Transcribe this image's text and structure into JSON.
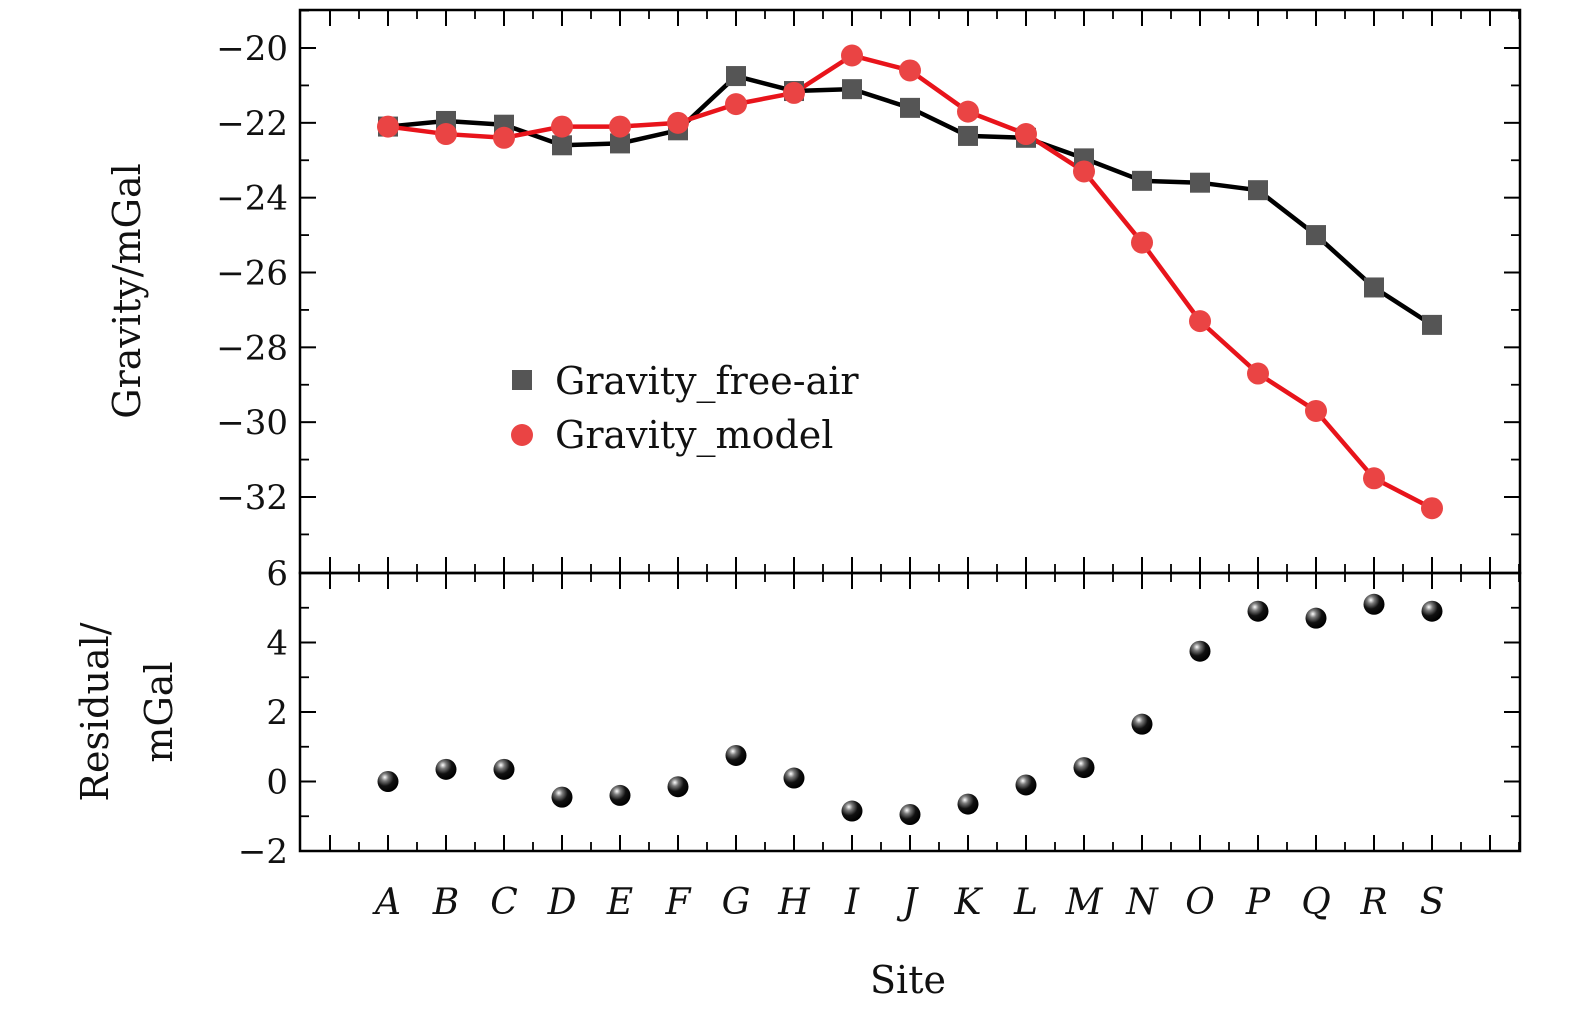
{
  "chart_data": {
    "type": "line",
    "categories": [
      "A",
      "B",
      "C",
      "D",
      "E",
      "F",
      "G",
      "H",
      "I",
      "J",
      "K",
      "L",
      "M",
      "N",
      "O",
      "P",
      "Q",
      "R",
      "S"
    ],
    "x_axis": {
      "label": "Site"
    },
    "top_panel": {
      "ylabel": "Gravity/mGal",
      "ylim": [
        -34,
        -19
      ],
      "yticks": [
        -20,
        -22,
        -24,
        -26,
        -28,
        -30,
        -32
      ],
      "ytick_labels": [
        "−20",
        "−22",
        "−24",
        "−26",
        "−28",
        "−30",
        "−32"
      ],
      "legend_position": "center",
      "series": [
        {
          "name": "Gravity_free-air",
          "marker": "square",
          "color": "#000000",
          "marker_color": "#555555",
          "values": [
            -22.1,
            -21.95,
            -22.05,
            -22.6,
            -22.55,
            -22.2,
            -20.75,
            -21.15,
            -21.1,
            -21.6,
            -22.35,
            -22.4,
            -22.95,
            -23.55,
            -23.6,
            -23.8,
            -25.0,
            -26.4,
            -27.4
          ]
        },
        {
          "name": "Gravity_model",
          "marker": "circle",
          "color": "#e8141b",
          "marker_color": "#ea4444",
          "values": [
            -22.1,
            -22.3,
            -22.4,
            -22.1,
            -22.1,
            -22.0,
            -21.5,
            -21.2,
            -20.2,
            -20.6,
            -21.7,
            -22.3,
            -23.3,
            -25.2,
            -27.3,
            -28.7,
            -29.7,
            -31.5,
            -32.3
          ]
        }
      ]
    },
    "bottom_panel": {
      "ylabel_line1": "Residual/",
      "ylabel_line2": "mGal",
      "ylim": [
        -2,
        6
      ],
      "yticks": [
        -2,
        0,
        2,
        4,
        6
      ],
      "ytick_labels": [
        "−2",
        "0",
        "2",
        "4",
        "6"
      ],
      "series": [
        {
          "name": "",
          "marker": "sphere",
          "color": "#000000",
          "values": [
            0.0,
            0.35,
            0.35,
            -0.45,
            -0.4,
            -0.15,
            0.75,
            0.1,
            -0.85,
            -0.95,
            -0.65,
            -0.1,
            0.4,
            1.65,
            3.75,
            4.9,
            4.7,
            5.1,
            4.9
          ]
        }
      ]
    }
  }
}
